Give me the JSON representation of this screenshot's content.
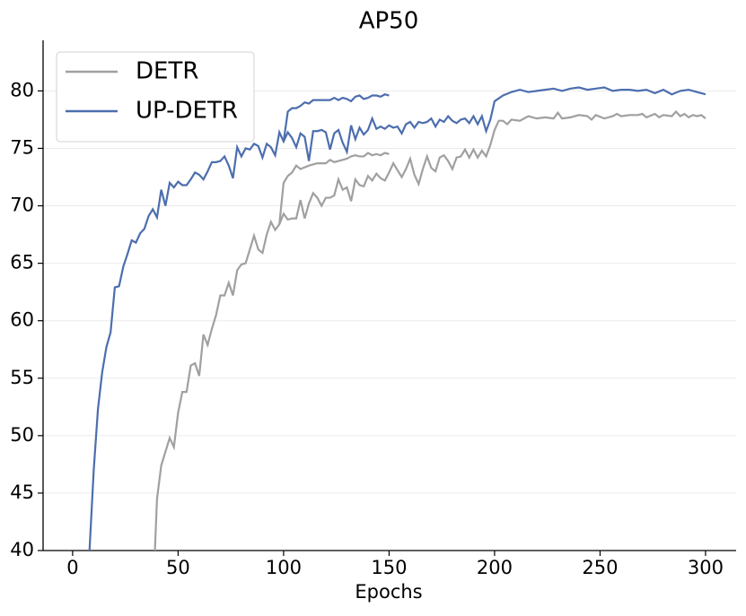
{
  "chart_data": {
    "type": "line",
    "title": "AP50",
    "x_label": "Epochs",
    "xlim": [
      -14,
      314.5
    ],
    "ylim": [
      40,
      84.4
    ],
    "xticks": [
      0,
      50,
      100,
      150,
      200,
      250,
      300
    ],
    "yticks": [
      40,
      45,
      50,
      55,
      60,
      65,
      70,
      75,
      80
    ],
    "grid": true,
    "legend": "upper left",
    "series": [
      {
        "name": "DETR",
        "color": "#a0a0a0",
        "x": [
          39,
          40,
          42,
          44,
          46,
          48,
          50,
          52,
          54,
          56,
          58,
          60,
          62,
          64,
          66,
          68,
          70,
          72,
          74,
          76,
          78,
          80,
          82,
          84,
          86,
          88,
          90,
          92,
          94,
          96,
          98,
          100,
          102,
          104,
          106,
          108,
          110,
          112,
          114,
          116,
          118,
          120,
          122,
          124,
          126,
          128,
          130,
          132,
          134,
          136,
          138,
          140,
          142,
          144,
          146,
          148,
          150,
          152,
          154,
          156,
          158,
          160,
          162,
          164,
          166,
          168,
          170,
          172,
          174,
          176,
          178,
          180,
          182,
          184,
          186,
          188,
          190,
          192,
          194,
          196,
          198,
          200,
          202,
          204,
          206,
          208,
          212,
          216,
          220,
          224,
          228,
          230,
          232,
          236,
          240,
          244,
          246,
          248,
          252,
          256,
          258,
          260,
          264,
          268,
          270,
          272,
          276,
          278,
          280,
          284,
          286,
          288,
          290,
          292,
          294,
          296,
          298,
          300
        ],
        "values": [
          40,
          44.5,
          47.4,
          48.6,
          49.8,
          49,
          52,
          53.8,
          53.8,
          56.1,
          56.3,
          55.2,
          58.8,
          57.9,
          59.3,
          60.5,
          62.2,
          62.2,
          63.3,
          62.2,
          64.4,
          64.9,
          65,
          66.2,
          67.4,
          66.2,
          65.9,
          67.5,
          68.6,
          67.9,
          68.4,
          69.3,
          68.8,
          68.9,
          68.9,
          70.5,
          68.9,
          70.2,
          71.1,
          70.7,
          70,
          70.7,
          70.7,
          70.9,
          72.3,
          71.4,
          71.6,
          70.4,
          72.3,
          71.8,
          71.7,
          72.6,
          72.2,
          72.8,
          72.4,
          72.2,
          72.9,
          73.7,
          73.1,
          72.5,
          73.2,
          74.1,
          72.7,
          71.9,
          73.2,
          74.3,
          73.3,
          73,
          74.2,
          74.4,
          73.9,
          73.2,
          74.2,
          74.3,
          74.9,
          74.2,
          74.9,
          74.2,
          74.8,
          74.3,
          75.3,
          76.6,
          77.4,
          77.4,
          77.1,
          77.5,
          77.4,
          77.8,
          77.6,
          77.7,
          77.6,
          78.1,
          77.6,
          77.7,
          77.9,
          77.8,
          77.5,
          77.9,
          77.6,
          77.8,
          78,
          77.8,
          77.9,
          77.9,
          78,
          77.7,
          78,
          77.7,
          77.9,
          77.8,
          78.2,
          77.8,
          78,
          77.7,
          77.9,
          77.8,
          77.9,
          77.6
        ]
      },
      {
        "color": "#a0a0a0",
        "x": [
          98,
          100,
          102,
          104,
          106,
          108,
          112,
          116,
          120,
          122,
          124,
          128,
          130,
          132,
          134,
          136,
          138,
          140,
          142,
          144,
          146,
          148,
          150
        ],
        "values": [
          68.4,
          72,
          72.6,
          72.9,
          73.5,
          73.2,
          73.5,
          73.7,
          73.7,
          74,
          73.8,
          74,
          74.1,
          74.3,
          74.4,
          74.3,
          74.3,
          74.6,
          74.4,
          74.5,
          74.4,
          74.6,
          74.5
        ]
      },
      {
        "name": "UP-DETR",
        "color": "#4c6eae",
        "x": [
          8,
          10,
          12,
          14,
          16,
          18,
          20,
          22,
          24,
          26,
          28,
          30,
          32,
          34,
          36,
          38,
          40,
          42,
          44,
          46,
          48,
          50,
          52,
          54,
          56,
          58,
          60,
          62,
          64,
          66,
          68,
          70,
          72,
          74,
          76,
          78,
          80,
          82,
          84,
          86,
          88,
          90,
          92,
          94,
          96,
          98,
          100,
          102,
          104,
          106,
          108,
          110,
          112,
          114,
          116,
          118,
          120,
          122,
          124,
          126,
          128,
          130,
          132,
          134,
          136,
          138,
          140,
          142,
          144,
          146,
          148,
          150,
          152,
          154,
          156,
          158,
          160,
          162,
          164,
          166,
          168,
          170,
          172,
          174,
          176,
          178,
          180,
          182,
          184,
          186,
          188,
          190,
          192,
          194,
          196,
          198,
          200,
          204,
          208,
          212,
          216,
          220,
          224,
          228,
          232,
          236,
          240,
          244,
          248,
          252,
          256,
          260,
          264,
          268,
          272,
          276,
          280,
          284,
          288,
          292,
          296,
          300
        ],
        "values": [
          40,
          47,
          52.3,
          55.5,
          57.7,
          59,
          62.9,
          63,
          64.7,
          65.8,
          67,
          66.8,
          67.6,
          68,
          69.1,
          69.7,
          69,
          71.4,
          70,
          72,
          71.6,
          72.1,
          71.8,
          71.8,
          72.3,
          72.9,
          72.7,
          72.3,
          73,
          73.8,
          73.8,
          73.9,
          74.3,
          73.5,
          72.4,
          75.1,
          74.3,
          75,
          74.9,
          75.4,
          75.2,
          74.2,
          75.4,
          75.1,
          74.4,
          76.4,
          75.6,
          76.4,
          75.9,
          75.1,
          76.3,
          76,
          73.9,
          76.5,
          76.5,
          76.6,
          76.4,
          74.9,
          76.3,
          76.6,
          75.5,
          74.7,
          77,
          75.8,
          76.8,
          76.2,
          76.6,
          77.6,
          76.7,
          76.9,
          76.7,
          77,
          76.8,
          76.9,
          76.3,
          77.1,
          77.3,
          76.8,
          77.3,
          77.2,
          77.3,
          77.6,
          76.9,
          77.5,
          77.3,
          77.8,
          77.4,
          77.2,
          77.5,
          77.6,
          77.2,
          77.8,
          77.1,
          77.8,
          76.5,
          77.5,
          79.1,
          79.6,
          79.9,
          80.1,
          79.9,
          80,
          80.1,
          80.2,
          80,
          80.2,
          80.3,
          80.1,
          80.2,
          80.3,
          80,
          80.1,
          80.1,
          80,
          80.1,
          79.8,
          80.1,
          79.7,
          80,
          80.1,
          79.9,
          79.7
        ]
      },
      {
        "color": "#4c6eae",
        "x": [
          100,
          102,
          104,
          106,
          108,
          110,
          112,
          114,
          118,
          122,
          124,
          126,
          128,
          130,
          132,
          134,
          136,
          138,
          140,
          142,
          144,
          146,
          148,
          150
        ],
        "values": [
          75.6,
          78.2,
          78.5,
          78.5,
          78.7,
          79,
          78.9,
          79.2,
          79.2,
          79.2,
          79.4,
          79.2,
          79.4,
          79.3,
          79.1,
          79.5,
          79.6,
          79.3,
          79.4,
          79.6,
          79.6,
          79.5,
          79.7,
          79.6
        ]
      }
    ]
  }
}
